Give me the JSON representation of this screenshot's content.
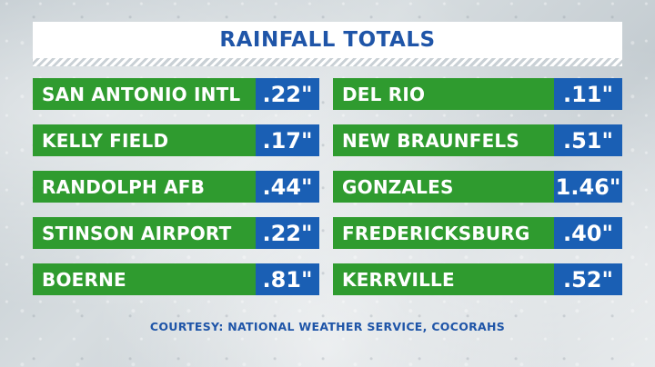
{
  "title": "RAINFALL TOTALS",
  "rows_left": [
    {
      "location": "SAN ANTONIO INTL",
      "value": ".22\""
    },
    {
      "location": "KELLY FIELD",
      "value": ".17\""
    },
    {
      "location": "RANDOLPH AFB",
      "value": ".44\""
    },
    {
      "location": "STINSON AIRPORT",
      "value": ".22\""
    },
    {
      "location": "BOERNE",
      "value": ".81\""
    }
  ],
  "rows_right": [
    {
      "location": "DEL RIO",
      "value": ".11\""
    },
    {
      "location": "NEW BRAUNFELS",
      "value": ".51\""
    },
    {
      "location": "GONZALES",
      "value": "1.46\""
    },
    {
      "location": "FREDERICKSBURG",
      "value": ".40\""
    },
    {
      "location": "KERRVILLE",
      "value": ".52\""
    }
  ],
  "footer": "COURTESY: NATIONAL WEATHER SERVICE, COCORAHS",
  "colors": {
    "title_text": "#1f55a8",
    "name_bg": "#2f9b2f",
    "value_bg": "#1a5fb4"
  }
}
